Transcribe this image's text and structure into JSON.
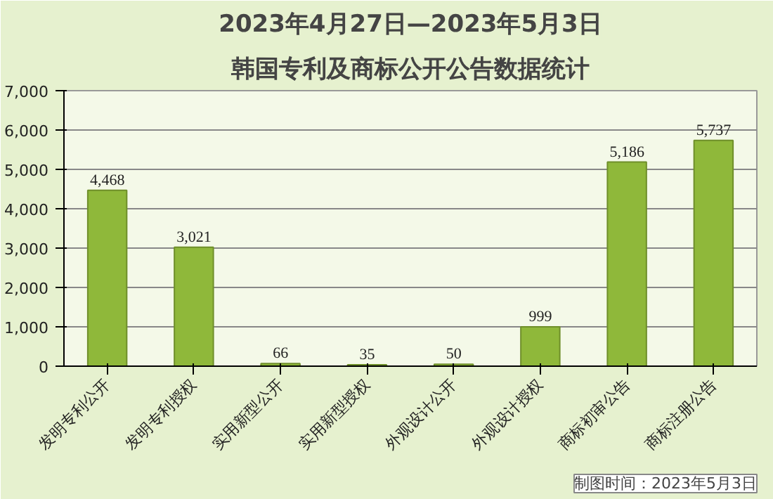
{
  "chart_data": {
    "type": "bar",
    "title": "2023年4月27日—2023年5月3日",
    "subtitle": "韩国专利及商标公开公告数据统计",
    "categories": [
      "发明专利公开",
      "发明专利授权",
      "实用新型公开",
      "实用新型授权",
      "外观设计公开",
      "外观设计授权",
      "商标初审公告",
      "商标注册公告"
    ],
    "values": [
      4468,
      3021,
      66,
      35,
      50,
      999,
      5186,
      5737
    ],
    "value_labels": [
      "4,468",
      "3,021",
      "66",
      "35",
      "50",
      "999",
      "5,186",
      "5,737"
    ],
    "color": "#8fb83a",
    "ylim": [
      0,
      7000
    ],
    "yticks": [
      {
        "value": 0,
        "label": "0"
      },
      {
        "value": 1000,
        "label": "1,000"
      },
      {
        "value": 2000,
        "label": "2,000"
      },
      {
        "value": 3000,
        "label": "3,000"
      },
      {
        "value": 4000,
        "label": "4,000"
      },
      {
        "value": 5000,
        "label": "5,000"
      },
      {
        "value": 6000,
        "label": "6,000"
      },
      {
        "value": 7000,
        "label": "7,000"
      }
    ],
    "grid": "y",
    "annotations": [
      "制图时间：2023年5月3日"
    ]
  }
}
